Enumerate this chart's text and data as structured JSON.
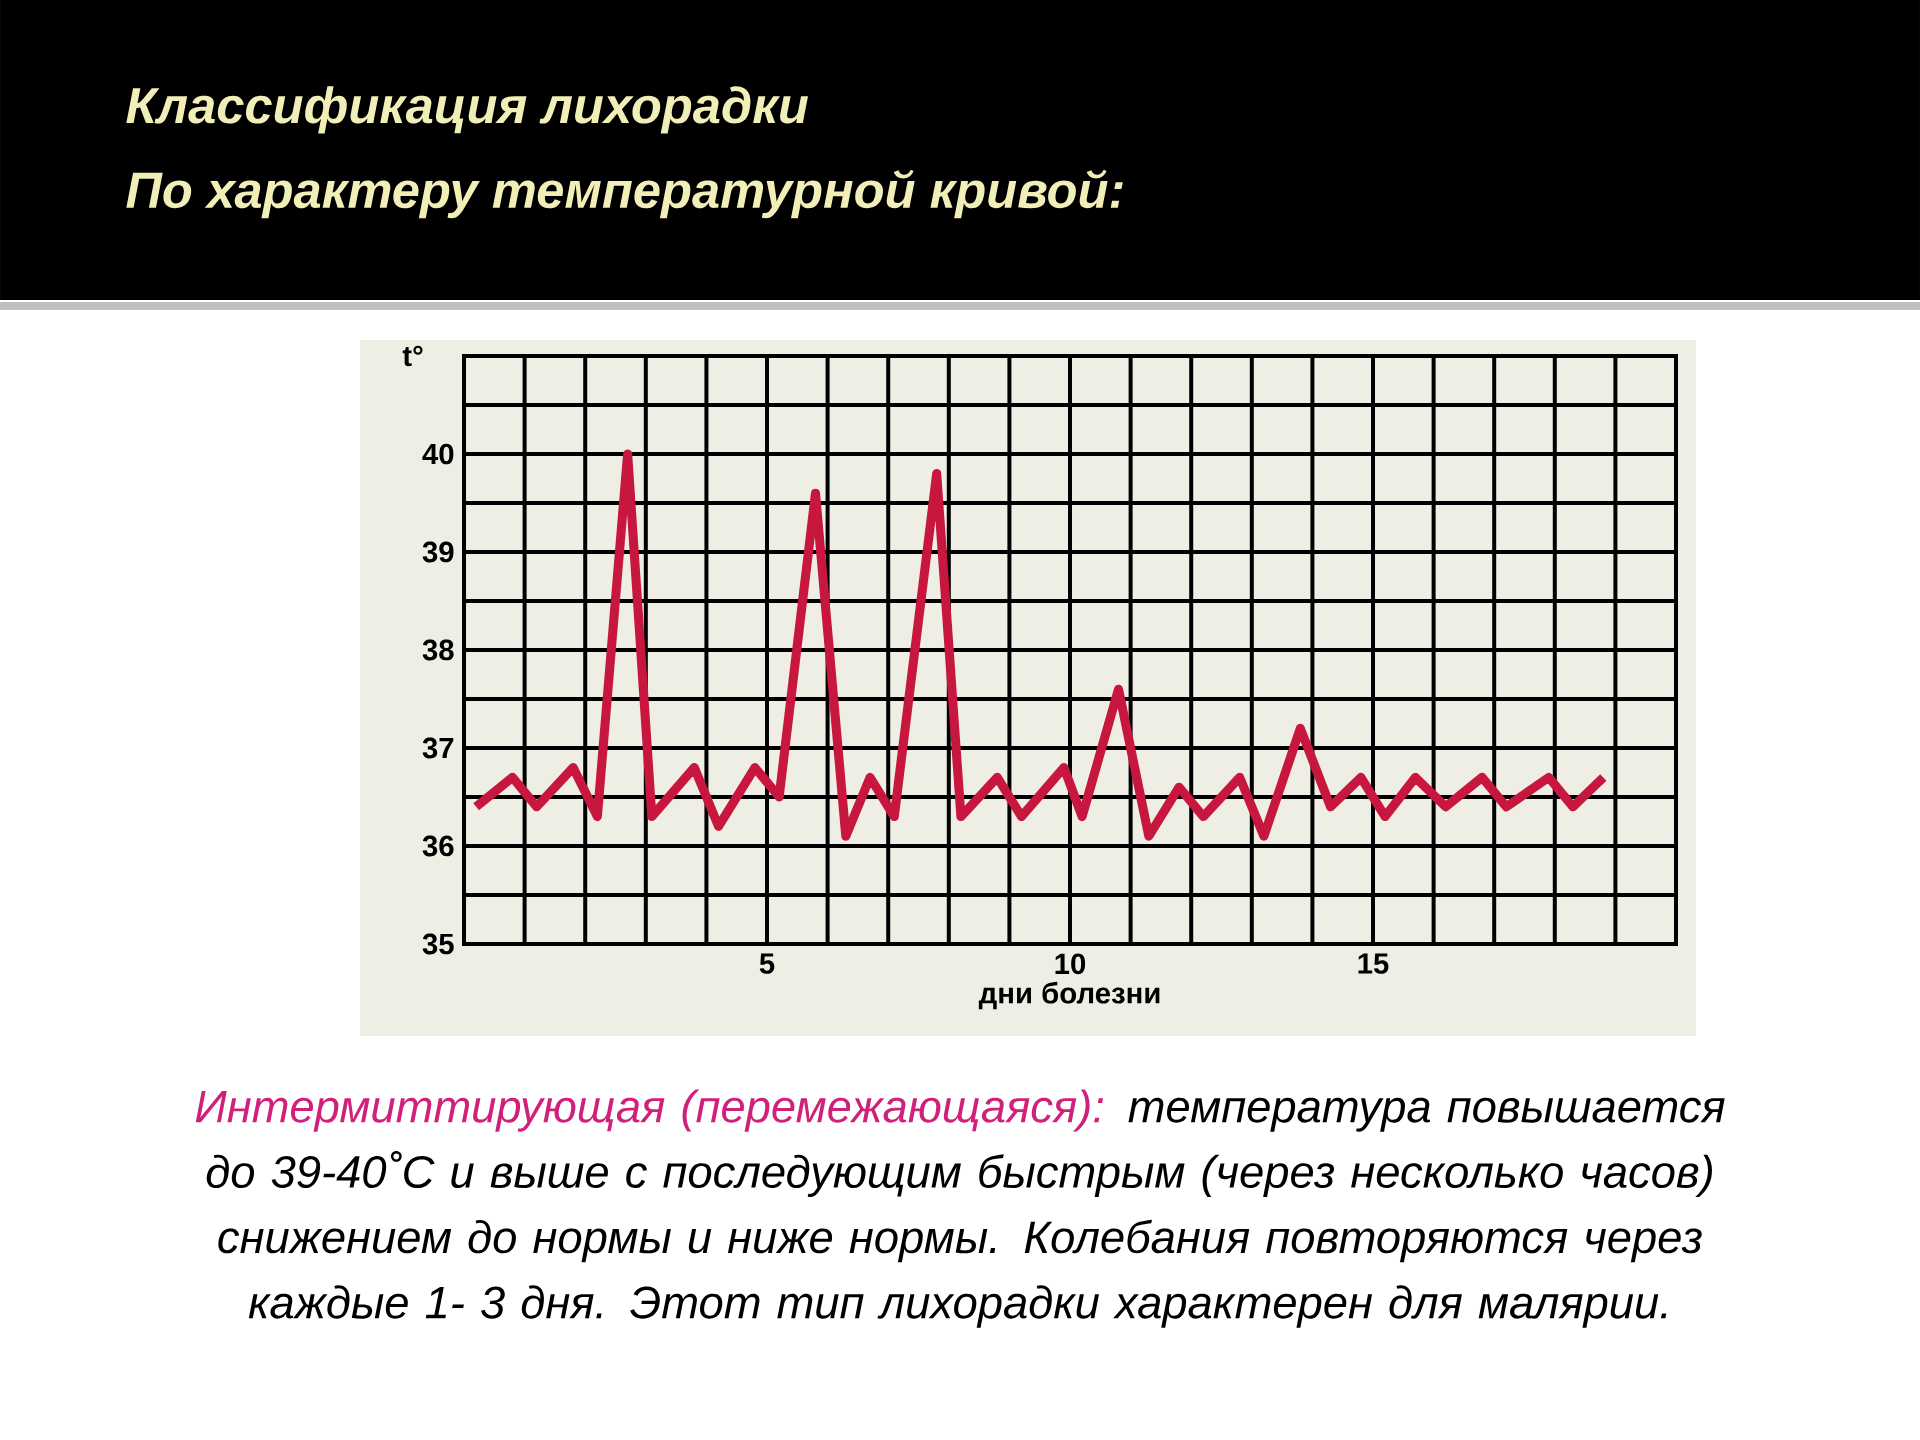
{
  "chart_data": {
    "type": "line",
    "title": "Классификация лихорадки",
    "subtitle": "По характеру температурной кривой:",
    "xlabel": "дни болезни",
    "ylabel": "t°",
    "x": [
      0.2,
      0.8,
      1.2,
      1.8,
      2.2,
      2.7,
      3.1,
      3.8,
      4.2,
      4.8,
      5.2,
      5.8,
      6.3,
      6.7,
      7.1,
      7.8,
      8.2,
      8.8,
      9.2,
      9.9,
      10.2,
      10.8,
      11.3,
      11.8,
      12.2,
      12.8,
      13.2,
      13.8,
      14.3,
      14.8,
      15.2,
      15.7,
      16.2,
      16.8,
      17.2,
      17.9,
      18.3,
      18.8
    ],
    "series": [
      {
        "color": "#c8173f",
        "values": [
          36.4,
          36.7,
          36.4,
          36.8,
          36.3,
          40.0,
          36.3,
          36.8,
          36.2,
          36.8,
          36.5,
          39.6,
          36.1,
          36.7,
          36.3,
          39.8,
          36.3,
          36.7,
          36.3,
          36.8,
          36.3,
          37.6,
          36.1,
          36.6,
          36.3,
          36.7,
          36.1,
          37.2,
          36.4,
          36.7,
          36.3,
          36.7,
          36.4,
          36.7,
          36.4,
          36.7,
          36.4,
          36.7
        ]
      }
    ],
    "xlim": [
      0,
      20
    ],
    "ylim": [
      35,
      41
    ],
    "xticks": [
      {
        "value": 0,
        "label": null
      },
      {
        "value": 1,
        "label": null
      },
      {
        "value": 2,
        "label": null
      },
      {
        "value": 3,
        "label": null
      },
      {
        "value": 4,
        "label": null
      },
      5,
      {
        "value": 6,
        "label": null
      },
      {
        "value": 7,
        "label": null
      },
      {
        "value": 8,
        "label": null
      },
      {
        "value": 9,
        "label": null
      },
      10,
      {
        "value": 11,
        "label": null
      },
      {
        "value": 12,
        "label": null
      },
      {
        "value": 13,
        "label": null
      },
      {
        "value": 14,
        "label": null
      },
      15,
      {
        "value": 16,
        "label": null
      },
      {
        "value": 17,
        "label": null
      },
      {
        "value": 18,
        "label": null
      },
      {
        "value": 19,
        "label": null
      },
      {
        "value": 20,
        "label": null
      }
    ],
    "yticks": [
      35,
      {
        "value": 35.5,
        "label": null
      },
      36,
      {
        "value": 36.5,
        "label": null
      },
      37,
      {
        "value": 37.5,
        "label": null
      },
      38,
      {
        "value": 38.5,
        "label": null
      },
      39,
      {
        "value": 39.5,
        "label": null
      },
      40,
      {
        "value": 40.5,
        "label": null
      },
      {
        "value": 41,
        "label": null
      }
    ],
    "grid": true,
    "line_style": "solid",
    "annotations": [
      "Интермиттирующая (перемежающаяся):",
      "температура повышается до 39-40˚С и выше с последующим быстрым (через несколько часов) снижением до нормы и ниже нормы. Колебания повторяются через каждые 1- 3 дня. Этот тип лихорадки характерен для малярии."
    ]
  }
}
